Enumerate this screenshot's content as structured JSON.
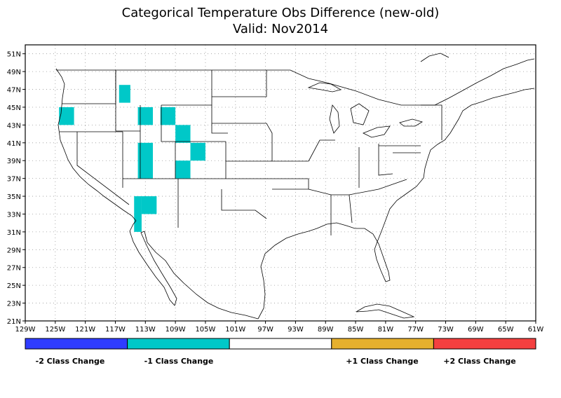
{
  "title": "Categorical Temperature Obs Difference (new-old)",
  "subtitle": "Valid: Nov2014",
  "map": {
    "lon_labels": [
      "129W",
      "125W",
      "121W",
      "117W",
      "113W",
      "109W",
      "105W",
      "101W",
      "97W",
      "93W",
      "89W",
      "85W",
      "81W",
      "77W",
      "73W",
      "69W",
      "65W",
      "61W"
    ],
    "lat_labels": [
      "51N",
      "49N",
      "47N",
      "45N",
      "43N",
      "41N",
      "39N",
      "37N",
      "35N",
      "33N",
      "31N",
      "29N",
      "27N",
      "25N",
      "23N",
      "21N"
    ],
    "lon_range": [
      -129,
      -61
    ],
    "lat_range": [
      21,
      52
    ],
    "grid": "dotted",
    "change_cells": [
      {
        "lon": [
          -116.5,
          -115
        ],
        "lat": [
          45.5,
          47.5
        ],
        "value": -1
      },
      {
        "lon": [
          -124.5,
          -122.5
        ],
        "lat": [
          43,
          45
        ],
        "value": -1
      },
      {
        "lon": [
          -114,
          -112
        ],
        "lat": [
          43,
          45
        ],
        "value": -1
      },
      {
        "lon": [
          -111,
          -109
        ],
        "lat": [
          43,
          45
        ],
        "value": -1
      },
      {
        "lon": [
          -109,
          -107
        ],
        "lat": [
          41,
          43
        ],
        "value": -1
      },
      {
        "lon": [
          -107,
          -105
        ],
        "lat": [
          39,
          41
        ],
        "value": -1
      },
      {
        "lon": [
          -114,
          -112
        ],
        "lat": [
          37,
          41
        ],
        "value": -1
      },
      {
        "lon": [
          -109,
          -107
        ],
        "lat": [
          37,
          39
        ],
        "value": -1
      },
      {
        "lon": [
          -113.5,
          -111.5
        ],
        "lat": [
          33,
          35
        ],
        "value": -1
      },
      {
        "lon": [
          -114.5,
          -113.5
        ],
        "lat": [
          31,
          35
        ],
        "value": -1
      }
    ]
  },
  "legend": {
    "items": [
      {
        "label": "-2 Class Change",
        "color": "#2f3cff"
      },
      {
        "label": "-1 Class Change",
        "color": "#00c8c8"
      },
      {
        "label": "",
        "color": "#ffffff"
      },
      {
        "label": "+1 Class Change",
        "color": "#e6b02e"
      },
      {
        "label": "+2 Class Change",
        "color": "#f44040"
      }
    ]
  },
  "colors": {
    "frame": "#000000",
    "grid": "#999999",
    "neg1": "#00c8c8"
  }
}
